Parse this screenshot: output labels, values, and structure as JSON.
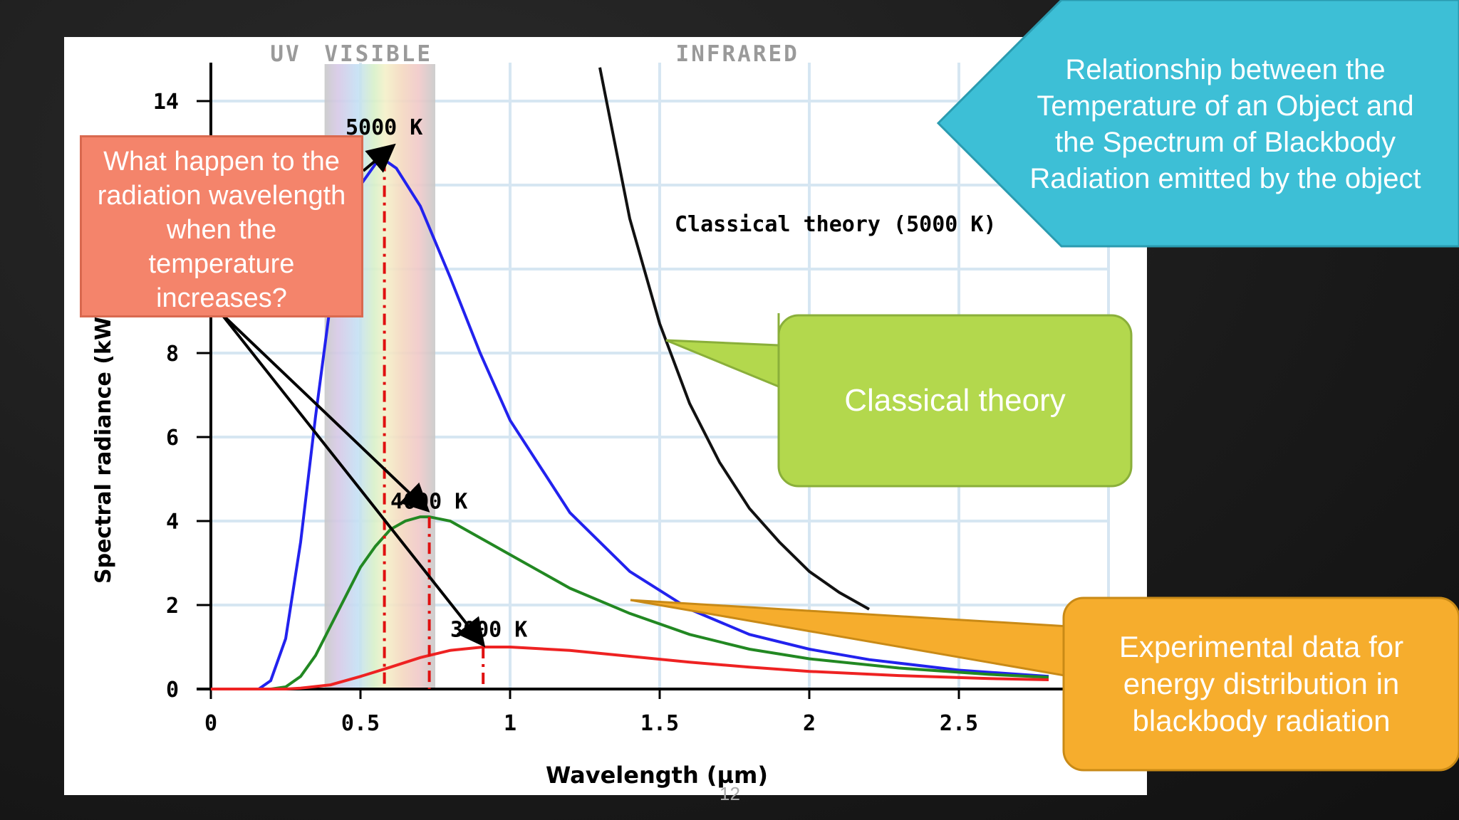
{
  "colors": {
    "planck_5000": "#2222ee",
    "planck_4000": "#228822",
    "planck_3000": "#ee2222",
    "classical": "#111111",
    "question_box": "#f4846b",
    "green_callout": "#b3d84d",
    "orange_callout": "#f6ad2d",
    "blue_callout": "#3dbfd6"
  },
  "chart_data": {
    "type": "line",
    "xlabel": "Wavelength (µm)",
    "ylabel": "Spectral radiance (kW· sr",
    "xlim": [
      0,
      3
    ],
    "ylim": [
      0,
      14
    ],
    "x_ticks": [
      "0",
      "0.5",
      "1",
      "1.5",
      "2",
      "2.5"
    ],
    "y_ticks": [
      "0",
      "2",
      "4",
      "6",
      "8",
      "14"
    ],
    "grid": true,
    "region_labels": [
      "UV",
      "VISIBLE",
      "INFRARED"
    ],
    "visible_band": [
      0.38,
      0.75
    ],
    "series": [
      {
        "name": "5000 K",
        "peak_x": 0.58,
        "peak_y": 12.6,
        "x": [
          0.16,
          0.2,
          0.25,
          0.3,
          0.35,
          0.4,
          0.45,
          0.5,
          0.55,
          0.58,
          0.62,
          0.7,
          0.8,
          0.9,
          1.0,
          1.2,
          1.4,
          1.6,
          1.8,
          2.0,
          2.2,
          2.5,
          2.8
        ],
        "y": [
          0.0,
          0.2,
          1.2,
          3.5,
          6.5,
          9.2,
          11.0,
          12.0,
          12.5,
          12.6,
          12.4,
          11.5,
          9.8,
          8.0,
          6.4,
          4.2,
          2.8,
          1.9,
          1.3,
          0.95,
          0.7,
          0.45,
          0.3
        ]
      },
      {
        "name": "4000 K",
        "peak_x": 0.73,
        "peak_y": 4.1,
        "x": [
          0.2,
          0.25,
          0.3,
          0.35,
          0.4,
          0.45,
          0.5,
          0.55,
          0.6,
          0.65,
          0.7,
          0.73,
          0.8,
          0.9,
          1.0,
          1.2,
          1.4,
          1.6,
          1.8,
          2.0,
          2.3,
          2.6,
          2.8
        ],
        "y": [
          0.0,
          0.05,
          0.3,
          0.8,
          1.5,
          2.2,
          2.9,
          3.4,
          3.8,
          4.0,
          4.1,
          4.1,
          4.0,
          3.6,
          3.2,
          2.4,
          1.8,
          1.3,
          0.95,
          0.72,
          0.5,
          0.35,
          0.28
        ]
      },
      {
        "name": "3000 K",
        "peak_x": 0.91,
        "peak_y": 1.0,
        "x": [
          0.25,
          0.3,
          0.4,
          0.5,
          0.6,
          0.7,
          0.8,
          0.91,
          1.0,
          1.2,
          1.4,
          1.6,
          1.8,
          2.0,
          2.3,
          2.6,
          2.8
        ],
        "y": [
          0.0,
          0.02,
          0.1,
          0.3,
          0.52,
          0.75,
          0.92,
          1.0,
          1.0,
          0.92,
          0.78,
          0.64,
          0.52,
          0.42,
          0.32,
          0.25,
          0.22
        ]
      },
      {
        "name": "Classical theory (5000 K)",
        "x": [
          1.3,
          1.4,
          1.5,
          1.6,
          1.7,
          1.8,
          1.9,
          2.0,
          2.1,
          2.2
        ],
        "y": [
          14.8,
          11.2,
          8.7,
          6.8,
          5.4,
          4.3,
          3.5,
          2.8,
          2.3,
          1.9
        ]
      }
    ]
  },
  "question": {
    "text": "What happen to the\nradiation wavelength\nwhen the\ntemperature\nincreases?"
  },
  "callouts": {
    "classical": "Classical theory",
    "experimental": "Experimental data for\nenergy distribution in\nblackbody radiation",
    "relationship": "Relationship between the\nTemperature of an Object and\nthe Spectrum of Blackbody\nRadiation emitted by the object"
  },
  "page_number": "12"
}
